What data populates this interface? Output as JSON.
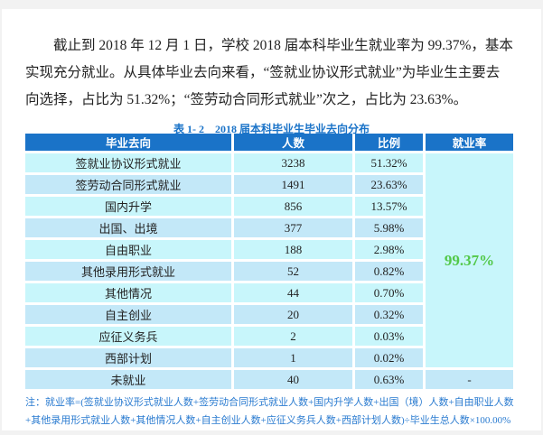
{
  "paragraph": "截止到 2018 年 12 月 1 日，学校 2018 届本科毕业生就业率为 99.37%，基本实现充分就业。从具体毕业去向来看，“签就业协议形式就业”为毕业生主要去向选择，占比为 51.32%；“签劳动合同形式就业”次之，占比为 23.63%。",
  "table": {
    "caption": "表 1- 2　2018 届本科毕业生毕业去向分布",
    "headers": [
      "毕业去向",
      "人数",
      "比例",
      "就业率"
    ],
    "rows": [
      {
        "dest": "签就业协议形式就业",
        "count": "3238",
        "ratio": "51.32%"
      },
      {
        "dest": "签劳动合同形式就业",
        "count": "1491",
        "ratio": "23.63%"
      },
      {
        "dest": "国内升学",
        "count": "856",
        "ratio": "13.57%"
      },
      {
        "dest": "出国、出境",
        "count": "377",
        "ratio": "5.98%"
      },
      {
        "dest": "自由职业",
        "count": "188",
        "ratio": "2.98%"
      },
      {
        "dest": "其他录用形式就业",
        "count": "52",
        "ratio": "0.82%"
      },
      {
        "dest": "其他情况",
        "count": "44",
        "ratio": "0.70%"
      },
      {
        "dest": "自主创业",
        "count": "20",
        "ratio": "0.32%"
      },
      {
        "dest": "应征义务兵",
        "count": "2",
        "ratio": "0.03%"
      },
      {
        "dest": "西部计划",
        "count": "1",
        "ratio": "0.02%"
      }
    ],
    "employment_rate": "99.37%",
    "unemployed": {
      "dest": "未就业",
      "count": "40",
      "ratio": "0.63%",
      "rate": "-"
    }
  },
  "note": "注：就业率=(签就业协议形式就业人数+签劳动合同形式就业人数+国内升学人数+出国（境）人数+自由职业人数+其他录用形式就业人数+其他情况人数+自主创业人数+应征义务兵人数+西部计划人数)÷毕业生总人数×100.00%",
  "colors": {
    "header": "#1a73c8",
    "row_light": "#c8f6fb",
    "row_alt": "#c3e8f8",
    "rate_text": "#52c848",
    "note_text": "#2a7bd0"
  }
}
